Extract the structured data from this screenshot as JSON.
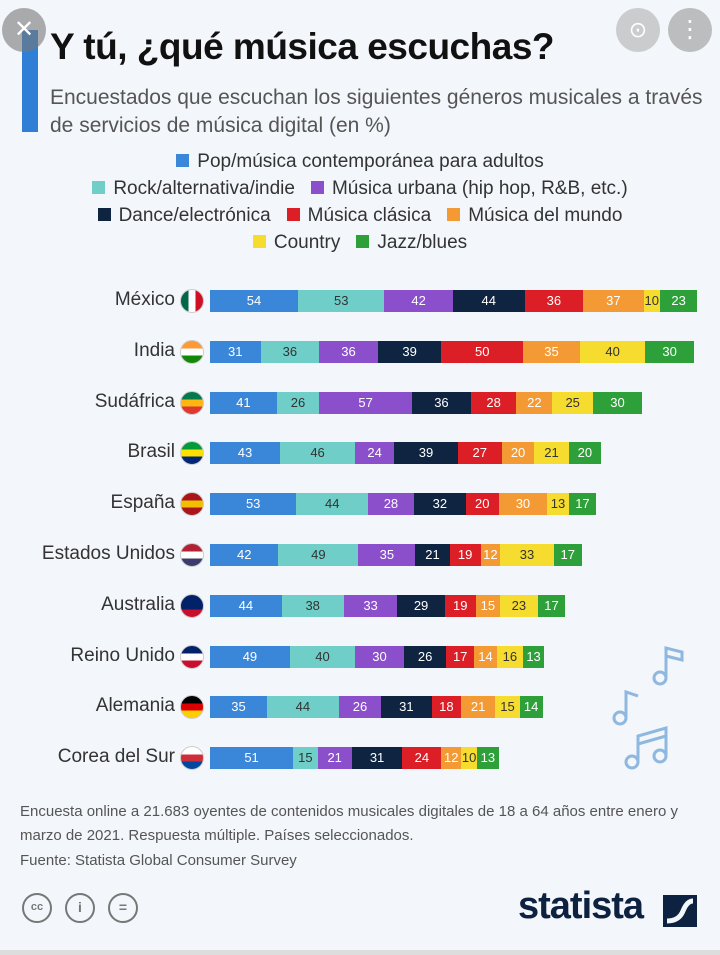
{
  "viewer": {
    "close_label": "✕",
    "lens_label": "⊙",
    "more_label": "⋮"
  },
  "chart_data": {
    "type": "bar",
    "orientation": "horizontal",
    "stacked": true,
    "title": "Y tú, ¿qué música escuchas?",
    "subtitle": "Encuestados que escuchan los siguientes géneros musicales a través de servicios de música digital (en %)",
    "categories": [
      "México",
      "India",
      "Sudáfrica",
      "Brasil",
      "España",
      "Estados Unidos",
      "Australia",
      "Reino Unido",
      "Alemania",
      "Corea del Sur"
    ],
    "series": [
      {
        "name": "Pop/música contemporánea para adultos",
        "color": "#3a86d9",
        "text_color": "#ffffff",
        "values": [
          54,
          31,
          41,
          43,
          53,
          42,
          44,
          49,
          35,
          51
        ]
      },
      {
        "name": "Rock/alternativa/indie",
        "color": "#6fcfc8",
        "text_color": "#333333",
        "values": [
          53,
          36,
          26,
          46,
          44,
          49,
          38,
          40,
          44,
          15
        ]
      },
      {
        "name": "Música urbana (hip hop, R&B, etc.)",
        "color": "#8b4fcc",
        "text_color": "#ffffff",
        "values": [
          42,
          36,
          57,
          24,
          28,
          35,
          33,
          30,
          26,
          21
        ]
      },
      {
        "name": "Dance/electrónica",
        "color": "#0f2440",
        "text_color": "#ffffff",
        "values": [
          44,
          39,
          36,
          39,
          32,
          21,
          29,
          26,
          31,
          31
        ]
      },
      {
        "name": "Música clásica",
        "color": "#dc1f26",
        "text_color": "#ffffff",
        "values": [
          36,
          50,
          28,
          27,
          20,
          19,
          19,
          17,
          18,
          24
        ]
      },
      {
        "name": "Música del mundo",
        "color": "#f39a35",
        "text_color": "#ffffff",
        "values": [
          37,
          35,
          22,
          20,
          30,
          12,
          15,
          14,
          21,
          12
        ]
      },
      {
        "name": "Country",
        "color": "#f6dc2f",
        "text_color": "#333333",
        "values": [
          10,
          40,
          25,
          21,
          13,
          33,
          23,
          16,
          15,
          10
        ]
      },
      {
        "name": "Jazz/blues",
        "color": "#2ea03a",
        "text_color": "#ffffff",
        "values": [
          23,
          30,
          30,
          20,
          17,
          17,
          17,
          13,
          14,
          13
        ]
      }
    ],
    "legend_placement": "top",
    "grid": false,
    "unit": "%"
  },
  "footer": {
    "note": "Encuesta online a 21.683 oyentes de contenidos musicales digitales de 18 a 64 años entre enero y marzo de 2021. Respuesta múltiple. Países seleccionados.",
    "source": "Fuente: Statista Global Consumer Survey",
    "license_icons": [
      "cc",
      "by",
      "nd"
    ],
    "cc_label": "cc",
    "by_label": "i",
    "nd_label": "=",
    "logo": "statista"
  }
}
